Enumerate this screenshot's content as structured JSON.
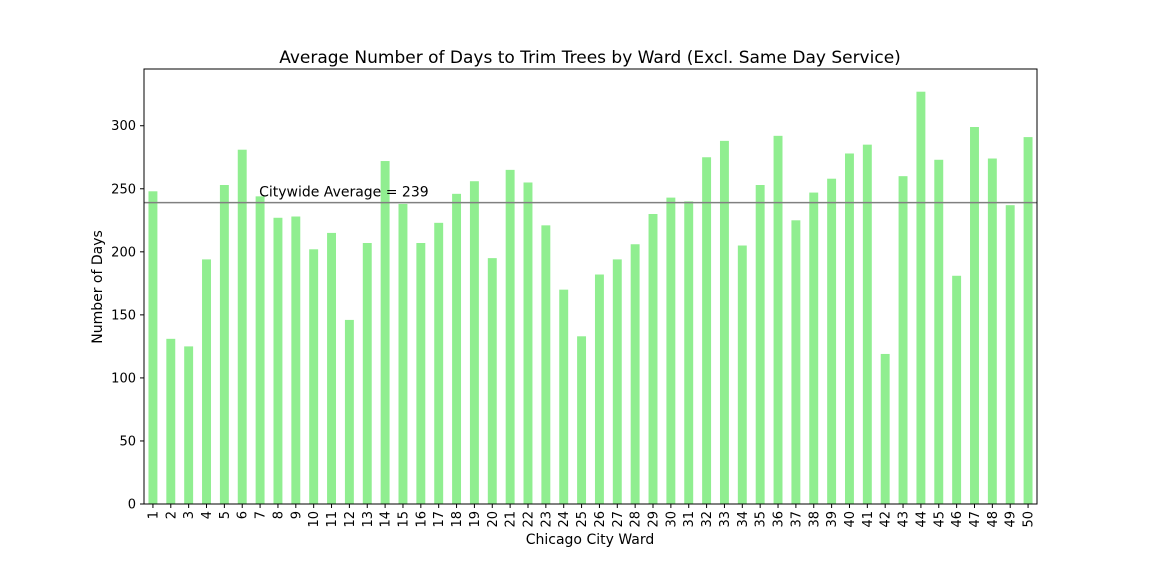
{
  "chart_data": {
    "type": "bar",
    "title": "Average Number of Days to Trim Trees by Ward (Excl. Same Day Service)",
    "xlabel": "Chicago City Ward",
    "ylabel": "Number of Days",
    "ylim": [
      0,
      345
    ],
    "yticks": [
      0,
      50,
      100,
      150,
      200,
      250,
      300
    ],
    "grid": false,
    "categories": [
      "1",
      "2",
      "3",
      "4",
      "5",
      "6",
      "7",
      "8",
      "9",
      "10",
      "11",
      "12",
      "13",
      "14",
      "15",
      "16",
      "17",
      "18",
      "19",
      "20",
      "21",
      "22",
      "23",
      "24",
      "25",
      "26",
      "27",
      "28",
      "29",
      "30",
      "31",
      "32",
      "33",
      "34",
      "35",
      "36",
      "37",
      "38",
      "39",
      "40",
      "41",
      "42",
      "43",
      "44",
      "45",
      "46",
      "47",
      "48",
      "49",
      "50"
    ],
    "values": [
      248,
      131,
      125,
      194,
      253,
      281,
      244,
      227,
      228,
      202,
      215,
      146,
      207,
      272,
      238,
      207,
      223,
      246,
      256,
      195,
      265,
      255,
      221,
      170,
      133,
      182,
      194,
      206,
      230,
      243,
      240,
      275,
      288,
      205,
      253,
      292,
      225,
      247,
      258,
      278,
      285,
      119,
      260,
      327,
      273,
      181,
      299,
      274,
      237,
      291
    ],
    "bar_color": "#90ee90",
    "reference_line": {
      "value": 239,
      "label": "Citywide Average = 239",
      "color": "#808080"
    }
  }
}
